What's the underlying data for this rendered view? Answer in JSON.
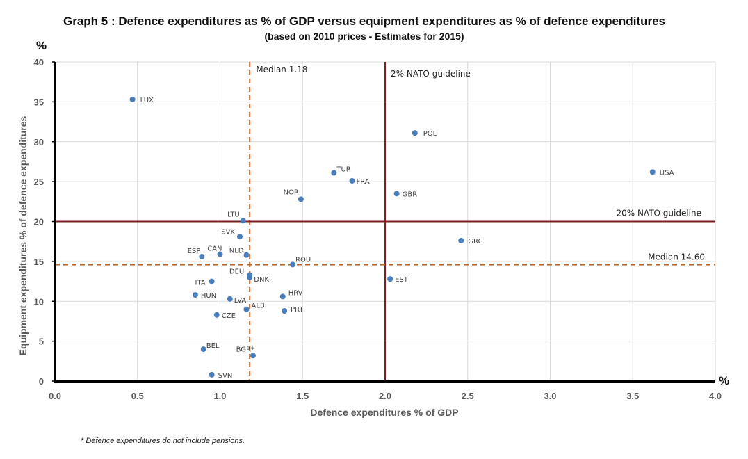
{
  "chart_data": {
    "type": "scatter",
    "title": "Graph 5 : Defence expenditures as % of GDP versus equipment expenditures as % of defence expenditures",
    "subtitle": "(based on 2010 prices - Estimates for 2015)",
    "xlabel": "Defence expenditures % of GDP",
    "ylabel": "Equipment expenditures % of defence expenditures",
    "x_unit": "%",
    "y_unit": "%",
    "xlim": [
      0,
      4
    ],
    "ylim": [
      0,
      40
    ],
    "x_ticks": [
      0,
      0.5,
      1,
      1.5,
      2,
      2.5,
      3,
      3.5,
      4
    ],
    "x_tick_labels": [
      "0.0",
      "0.5",
      "1.0",
      "1.5",
      "2.0",
      "2.5",
      "3.0",
      "3.5",
      "4.0"
    ],
    "y_ticks": [
      0,
      5,
      10,
      15,
      20,
      25,
      30,
      35,
      40
    ],
    "y_tick_labels": [
      "0",
      "5",
      "10",
      "15",
      "20",
      "25",
      "30",
      "35",
      "40"
    ],
    "grid": true,
    "point_color": "#4a7ebb",
    "points": [
      {
        "label": "LUX",
        "x": 0.47,
        "y": 35.3
      },
      {
        "label": "POL",
        "x": 2.18,
        "y": 31.1
      },
      {
        "label": "USA",
        "x": 3.62,
        "y": 26.2
      },
      {
        "label": "TUR",
        "x": 1.69,
        "y": 26.1
      },
      {
        "label": "FRA",
        "x": 1.8,
        "y": 25.1
      },
      {
        "label": "GBR",
        "x": 2.07,
        "y": 23.5
      },
      {
        "label": "NOR",
        "x": 1.49,
        "y": 22.8
      },
      {
        "label": "LTU",
        "x": 1.14,
        "y": 20.1
      },
      {
        "label": "SVK",
        "x": 1.12,
        "y": 18.1
      },
      {
        "label": "GRC",
        "x": 2.46,
        "y": 17.6
      },
      {
        "label": "ESP",
        "x": 0.89,
        "y": 15.6
      },
      {
        "label": "CAN",
        "x": 1.0,
        "y": 15.9
      },
      {
        "label": "NLD",
        "x": 1.16,
        "y": 15.8
      },
      {
        "label": "ROU",
        "x": 1.44,
        "y": 14.6
      },
      {
        "label": "DEU",
        "x": 1.18,
        "y": 13.3
      },
      {
        "label": "DNK",
        "x": 1.18,
        "y": 13.0
      },
      {
        "label": "EST",
        "x": 2.03,
        "y": 12.8
      },
      {
        "label": "ITA",
        "x": 0.95,
        "y": 12.5
      },
      {
        "label": "HUN",
        "x": 0.85,
        "y": 10.8
      },
      {
        "label": "HRV",
        "x": 1.38,
        "y": 10.6
      },
      {
        "label": "LVA",
        "x": 1.06,
        "y": 10.3
      },
      {
        "label": "ALB",
        "x": 1.16,
        "y": 9.0
      },
      {
        "label": "PRT",
        "x": 1.39,
        "y": 8.8
      },
      {
        "label": "CZE",
        "x": 0.98,
        "y": 8.3
      },
      {
        "label": "BEL",
        "x": 0.9,
        "y": 4.0
      },
      {
        "label": "BGR*",
        "x": 1.2,
        "y": 3.2
      },
      {
        "label": "SVN",
        "x": 0.95,
        "y": 0.8
      }
    ],
    "reference_lines": [
      {
        "orientation": "vertical",
        "value": 1.18,
        "label": "Median 1.18",
        "style": "dashed",
        "color": "#c55a11"
      },
      {
        "orientation": "vertical",
        "value": 2.0,
        "label": "2% NATO guideline",
        "style": "solid",
        "color": "#7b2020"
      },
      {
        "orientation": "horizontal",
        "value": 20,
        "label": "20% NATO guideline",
        "style": "solid",
        "color": "#7b2020"
      },
      {
        "orientation": "horizontal",
        "value": 14.6,
        "label": "Median 14.60",
        "style": "dashed",
        "color": "#c55a11"
      }
    ],
    "footnote": "*   Defence expenditures do not include pensions."
  }
}
